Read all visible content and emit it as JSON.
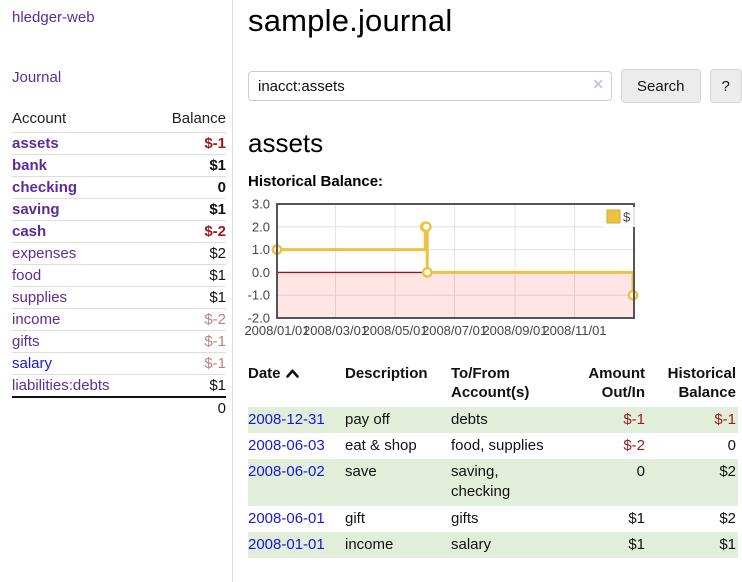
{
  "app": {
    "title": "hledger-web",
    "nav_journal": "Journal"
  },
  "colors": {
    "purple": "#5b2d9a",
    "blue": "#1717d6",
    "neg": "#9e1a1a",
    "mneg": "#bf8080",
    "stripe": "#e1eeda",
    "gold": "#edc240",
    "border": "#dddddd"
  },
  "sidebar": {
    "header": {
      "account": "Account",
      "balance": "Balance"
    },
    "accounts": [
      {
        "name": "assets",
        "balance": "$-1"
      },
      {
        "name": "bank",
        "balance": "$1"
      },
      {
        "name": "checking",
        "balance": "0"
      },
      {
        "name": "saving",
        "balance": "$1"
      },
      {
        "name": "cash",
        "balance": "$-2"
      },
      {
        "name": "expenses",
        "balance": "$2"
      },
      {
        "name": "food",
        "balance": "$1"
      },
      {
        "name": "supplies",
        "balance": "$1"
      },
      {
        "name": "income",
        "balance": "$-2"
      },
      {
        "name": "gifts",
        "balance": "$-1"
      },
      {
        "name": "salary",
        "balance": "$-1"
      },
      {
        "name": "liabilities:debts",
        "balance": "$1"
      }
    ],
    "total": "0"
  },
  "header": {
    "title": "sample.journal"
  },
  "search": {
    "value": "inacct:assets",
    "clear_icon": "✕",
    "button": "Search",
    "help_button": "?"
  },
  "account_page": {
    "title": "assets",
    "chart_label": "Historical Balance:"
  },
  "chart_data": {
    "type": "line",
    "style": "steps",
    "title": "Historical Balance",
    "x_range": [
      "2008-01-01",
      "2009-01-01"
    ],
    "ylim": [
      -2,
      3
    ],
    "y_ticks": [
      {
        "value": 3,
        "label": "3.0"
      },
      {
        "value": 2,
        "label": "2.0"
      },
      {
        "value": 1,
        "label": "1.0"
      },
      {
        "value": 0,
        "label": "0.0"
      },
      {
        "value": -1,
        "label": "-1.0"
      },
      {
        "value": -2,
        "label": "-2.0"
      }
    ],
    "x_ticks": [
      {
        "date": "2008-01-01",
        "label": "2008/01/01"
      },
      {
        "date": "2008-03-01",
        "label": "2008/03/01"
      },
      {
        "date": "2008-05-01",
        "label": "2008/05/01"
      },
      {
        "date": "2008-07-01",
        "label": "2008/07/01"
      },
      {
        "date": "2008-09-01",
        "label": "2008/09/01"
      },
      {
        "date": "2008-11-01",
        "label": "2008/11/01"
      }
    ],
    "series": [
      {
        "name": "$",
        "color": "#edc240",
        "points": [
          [
            "2008-01-01",
            1
          ],
          [
            "2008-06-01",
            2
          ],
          [
            "2008-06-02",
            2
          ],
          [
            "2008-06-03",
            0
          ],
          [
            "2008-12-31",
            -1
          ]
        ]
      }
    ],
    "legend": {
      "label": "$",
      "position": "top-right"
    },
    "grid": true,
    "negative_region_color": "rgba(255,0,0,0.10)",
    "zero_line_color": "#8b1d1d"
  },
  "register": {
    "columns": {
      "date": "Date",
      "description": "Description",
      "accounts": "To/From Account(s)",
      "amount": "Amount Out/In",
      "balance": "Historical Balance"
    },
    "rows": [
      {
        "date": "2008-12-31",
        "description": "pay off",
        "accounts": "debts",
        "amount": "$-1",
        "balance": "$-1"
      },
      {
        "date": "2008-06-03",
        "description": "eat & shop",
        "accounts": "food, supplies",
        "amount": "$-2",
        "balance": "0"
      },
      {
        "date": "2008-06-02",
        "description": "save",
        "accounts": "saving,\nchecking",
        "amount": "0",
        "balance": "$2"
      },
      {
        "date": "2008-06-01",
        "description": "gift",
        "accounts": "gifts",
        "amount": "$1",
        "balance": "$2"
      },
      {
        "date": "2008-01-01",
        "description": "income",
        "accounts": "salary",
        "amount": "$1",
        "balance": "$1"
      }
    ]
  }
}
